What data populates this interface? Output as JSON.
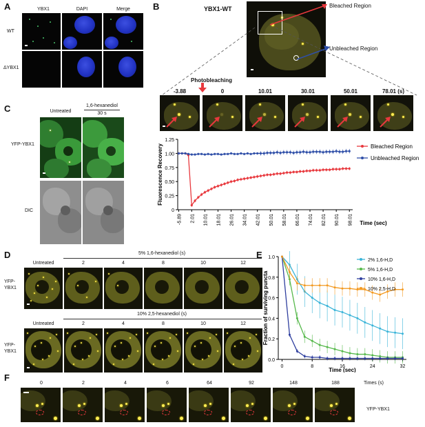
{
  "panels": {
    "A": {
      "label": "A",
      "columns": [
        "YBX1",
        "DAPI",
        "Merge"
      ],
      "rows": [
        "WT",
        "ΔYBX1"
      ]
    },
    "B": {
      "label": "B",
      "title": "YBX1-WT",
      "bleached_label": "Bleached Region",
      "unbleached_label": "Unbleached Region",
      "photobleaching": "Photobleaching",
      "timepoints": [
        "-3.88",
        "0",
        "10.01",
        "30.01",
        "50.01",
        "78.01 (s)"
      ]
    },
    "C": {
      "label": "C",
      "columns": [
        "Untreated",
        "1,6-hexanediol",
        "30 s"
      ],
      "rows": [
        "YFP-YBX1",
        "DIC"
      ]
    },
    "D": {
      "label": "D",
      "row1_header": "5% 1,6-hexanediol (s)",
      "row2_header": "10% 2,5-hexanediol (s)",
      "untreated": "Untreated",
      "times": [
        "2",
        "4",
        "8",
        "10",
        "12"
      ],
      "row_label_1": "YFP-",
      "row_label_2": "YBX1"
    },
    "E": {
      "label": "E"
    },
    "F": {
      "label": "F",
      "times": [
        "0",
        "2",
        "4",
        "6",
        "64",
        "92",
        "148",
        "188"
      ],
      "times_unit": "Times (s)",
      "row_label": "YFP-YBX1"
    }
  },
  "colors": {
    "bleached": "#e8383d",
    "unbleached": "#2f4fa8",
    "cyan": "#3ab4d8",
    "green": "#55b84a",
    "navy": "#2e3e9e",
    "orange": "#f39a22"
  },
  "chart_data": [
    {
      "type": "line",
      "panel": "B",
      "xlabel": "Time (sec)",
      "ylabel": "Fluorescence Recovery",
      "ylim": [
        0,
        1.25
      ],
      "yticks": [
        "0",
        "0.25",
        "0.50",
        "0.75",
        "1.00",
        "1.25"
      ],
      "xticks": [
        "-5.89",
        "2.01",
        "10.01",
        "18.01",
        "26.01",
        "34.01",
        "42.01",
        "50.01",
        "58.01",
        "66.01",
        "74.01",
        "82.01",
        "90.01",
        "98.01"
      ],
      "x": [
        -5.89,
        -3.88,
        -1.87,
        0,
        2.01,
        4.01,
        6.01,
        8.01,
        10.01,
        12.01,
        14.01,
        16.01,
        18.01,
        20.01,
        22.01,
        24.01,
        26.01,
        28.01,
        30.01,
        32.01,
        34.01,
        36.01,
        38.01,
        40.01,
        42.01,
        44.01,
        46.01,
        48.01,
        50.01,
        52.01,
        54.01,
        56.01,
        58.01,
        60.01,
        62.01,
        64.01,
        66.01,
        68.01,
        70.01,
        72.01,
        74.01,
        76.01,
        78.01,
        80.01,
        82.01,
        84.01,
        86.01,
        88.01,
        90.01,
        92.01,
        94.01,
        96.01,
        98.01
      ],
      "legend": "right",
      "series": [
        {
          "name": "Bleached Region",
          "values": [
            1.0,
            1.0,
            1.0,
            0.97,
            0.08,
            0.16,
            0.22,
            0.27,
            0.31,
            0.34,
            0.37,
            0.4,
            0.42,
            0.44,
            0.46,
            0.48,
            0.5,
            0.51,
            0.53,
            0.54,
            0.55,
            0.56,
            0.57,
            0.58,
            0.59,
            0.6,
            0.61,
            0.62,
            0.62,
            0.63,
            0.64,
            0.64,
            0.65,
            0.66,
            0.66,
            0.67,
            0.67,
            0.68,
            0.68,
            0.69,
            0.69,
            0.7,
            0.7,
            0.7,
            0.71,
            0.71,
            0.71,
            0.72,
            0.72,
            0.72,
            0.73,
            0.73,
            0.73
          ]
        },
        {
          "name": "Unbleached Region",
          "values": [
            1.0,
            1.0,
            1.0,
            0.99,
            0.98,
            0.98,
            0.99,
            0.99,
            0.98,
            0.99,
            0.98,
            0.99,
            0.99,
            0.98,
            0.99,
            0.99,
            1.0,
            0.99,
            0.99,
            1.0,
            0.99,
            1.0,
            0.99,
            1.0,
            1.0,
            1.0,
            1.0,
            1.01,
            1.01,
            1.01,
            1.02,
            1.01,
            1.02,
            1.02,
            1.02,
            1.01,
            1.02,
            1.02,
            1.03,
            1.02,
            1.02,
            1.03,
            1.03,
            1.03,
            1.02,
            1.03,
            1.03,
            1.03,
            1.04,
            1.03,
            1.03,
            1.04,
            1.04
          ]
        }
      ]
    },
    {
      "type": "line",
      "panel": "E",
      "xlabel": "Time (sec)",
      "ylabel": "Fraction of surviving puncta",
      "xlim": [
        0,
        32
      ],
      "ylim": [
        0,
        1.0
      ],
      "xticks": [
        "0",
        "8",
        "16",
        "24",
        "32"
      ],
      "yticks": [
        "0.0",
        "0.2",
        "0.4",
        "0.6",
        "0.8",
        "1.0"
      ],
      "x": [
        0,
        2,
        4,
        6,
        8,
        10,
        12,
        14,
        16,
        18,
        20,
        22,
        24,
        26,
        28,
        30,
        32
      ],
      "legend": "top-right",
      "series": [
        {
          "name": "2% 1,6-H,D",
          "values": [
            1.0,
            0.92,
            0.78,
            0.66,
            0.6,
            0.55,
            0.52,
            0.48,
            0.46,
            0.43,
            0.4,
            0.36,
            0.33,
            0.3,
            0.27,
            0.26,
            0.25
          ]
        },
        {
          "name": "5% 1,6-H,D",
          "values": [
            1.0,
            0.78,
            0.4,
            0.22,
            0.18,
            0.14,
            0.12,
            0.1,
            0.08,
            0.06,
            0.05,
            0.05,
            0.04,
            0.03,
            0.02,
            0.02,
            0.02
          ]
        },
        {
          "name": "10% 1,6-H,D",
          "values": [
            1.0,
            0.24,
            0.08,
            0.03,
            0.02,
            0.02,
            0.01,
            0.01,
            0.01,
            0.01,
            0.01,
            0.01,
            0.01,
            0.01,
            0.01,
            0.01,
            0.01
          ]
        },
        {
          "name": "10% 2,5-H,D",
          "values": [
            1.0,
            0.85,
            0.74,
            0.72,
            0.72,
            0.72,
            0.72,
            0.7,
            0.69,
            0.69,
            0.68,
            0.68,
            0.65,
            0.63,
            0.66,
            0.68,
            0.68
          ]
        }
      ]
    }
  ]
}
